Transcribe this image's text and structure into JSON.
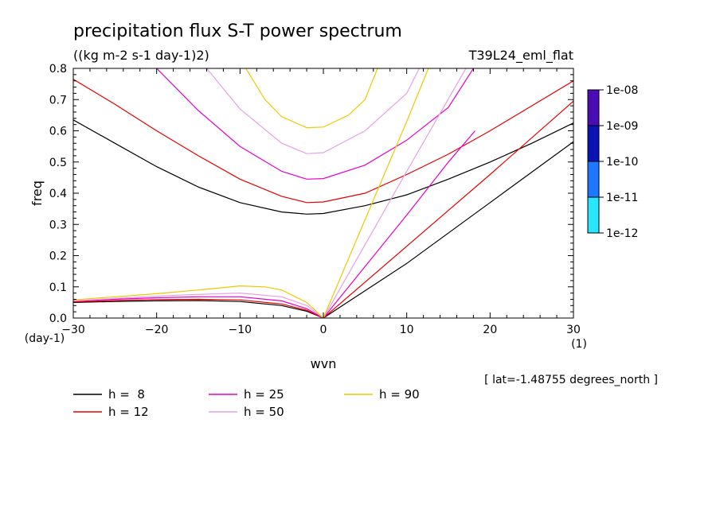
{
  "chart_data": {
    "type": "line",
    "title": "precipitation flux S-T power spectrum",
    "subtitle": "((kg m-2 s-1 day-1)2)",
    "run_label": "T39L24_eml_flat",
    "footnote": "[ lat=-1.48755 degrees_north ]",
    "xlabel": "wvn",
    "ylabel": "freq",
    "x_unit": "(1)",
    "y_unit": "(day-1)",
    "xlim": [
      -30,
      30
    ],
    "ylim": [
      0,
      0.8
    ],
    "x_ticks": [
      -30,
      -20,
      -10,
      0,
      10,
      20,
      30
    ],
    "x_tick_labels": [
      "-30",
      "-20",
      "-10",
      "0",
      "10",
      "20",
      "30"
    ],
    "y_ticks": [
      0,
      0.1,
      0.2,
      0.3,
      0.4,
      0.5,
      0.6,
      0.7,
      0.8
    ],
    "y_tick_labels": [
      "0.0",
      "0.1",
      "0.2",
      "0.3",
      "0.4",
      "0.5",
      "0.6",
      "0.7",
      "0.8"
    ],
    "colorbar": {
      "labels": [
        "1e-08",
        "1e-09",
        "1e-10",
        "1e-11",
        "1e-12"
      ],
      "colors": [
        "#4a0cb4",
        "#0a14b4",
        "#1e78ff",
        "#28e6ff"
      ]
    },
    "legend": [
      {
        "label": "h =  8",
        "color": "#000000"
      },
      {
        "label": "h = 12",
        "color": "#e60000"
      },
      {
        "label": "h = 25",
        "color": "#e600c8"
      },
      {
        "label": "h = 50",
        "color": "#e6a0e6"
      },
      {
        "label": "h = 90",
        "color": "#f0c800"
      }
    ],
    "series": [
      {
        "name": "h =  8",
        "color": "#000000",
        "inertia_gravity": [
          [
            -30,
            0.635
          ],
          [
            -25,
            0.56
          ],
          [
            -20,
            0.485
          ],
          [
            -15,
            0.42
          ],
          [
            -10,
            0.37
          ],
          [
            -5,
            0.34
          ],
          [
            -2,
            0.333
          ],
          [
            0,
            0.335
          ],
          [
            5,
            0.36
          ],
          [
            10,
            0.395
          ],
          [
            15,
            0.445
          ],
          [
            20,
            0.5
          ],
          [
            25,
            0.56
          ],
          [
            30,
            0.625
          ]
        ],
        "kelvin": [
          [
            0,
            0
          ],
          [
            10,
            0.175
          ],
          [
            20,
            0.37
          ],
          [
            30,
            0.565
          ]
        ],
        "rossby": [
          [
            -30,
            0.05
          ],
          [
            -25,
            0.053
          ],
          [
            -20,
            0.055
          ],
          [
            -15,
            0.056
          ],
          [
            -10,
            0.053
          ],
          [
            -5,
            0.04
          ],
          [
            -2,
            0.022
          ],
          [
            0,
            0
          ]
        ]
      },
      {
        "name": "h = 12",
        "color": "#e60000",
        "inertia_gravity": [
          [
            -30,
            0.765
          ],
          [
            -25,
            0.685
          ],
          [
            -20,
            0.6
          ],
          [
            -15,
            0.52
          ],
          [
            -10,
            0.445
          ],
          [
            -5,
            0.39
          ],
          [
            -2,
            0.37
          ],
          [
            0,
            0.372
          ],
          [
            5,
            0.4
          ],
          [
            10,
            0.46
          ],
          [
            15,
            0.525
          ],
          [
            20,
            0.6
          ],
          [
            25,
            0.68
          ],
          [
            30,
            0.76
          ]
        ],
        "kelvin": [
          [
            0,
            0
          ],
          [
            10,
            0.23
          ],
          [
            20,
            0.46
          ],
          [
            30,
            0.695
          ]
        ],
        "rossby": [
          [
            -30,
            0.052
          ],
          [
            -25,
            0.056
          ],
          [
            -20,
            0.059
          ],
          [
            -15,
            0.06
          ],
          [
            -10,
            0.058
          ],
          [
            -5,
            0.045
          ],
          [
            -2,
            0.025
          ],
          [
            0,
            0
          ]
        ]
      },
      {
        "name": "h = 25",
        "color": "#e600c8",
        "inertia_gravity": [
          [
            -20,
            0.8
          ],
          [
            -15,
            0.665
          ],
          [
            -10,
            0.55
          ],
          [
            -5,
            0.47
          ],
          [
            -2,
            0.445
          ],
          [
            0,
            0.447
          ],
          [
            5,
            0.49
          ],
          [
            10,
            0.57
          ],
          [
            15,
            0.675
          ],
          [
            18,
            0.8
          ]
        ],
        "kelvin": [
          [
            0,
            0
          ],
          [
            5,
            0.165
          ],
          [
            10,
            0.33
          ],
          [
            15,
            0.5
          ],
          [
            18.2,
            0.6
          ]
        ],
        "rossby": [
          [
            -30,
            0.054
          ],
          [
            -25,
            0.06
          ],
          [
            -20,
            0.065
          ],
          [
            -15,
            0.068
          ],
          [
            -10,
            0.068
          ],
          [
            -5,
            0.055
          ],
          [
            -2,
            0.03
          ],
          [
            0,
            0
          ]
        ]
      },
      {
        "name": "h = 50",
        "color": "#e6a0e6",
        "inertia_gravity": [
          [
            -14,
            0.8
          ],
          [
            -10,
            0.67
          ],
          [
            -5,
            0.56
          ],
          [
            -2,
            0.527
          ],
          [
            0,
            0.53
          ],
          [
            5,
            0.6
          ],
          [
            10,
            0.72
          ],
          [
            11.5,
            0.8
          ]
        ],
        "kelvin": [
          [
            0,
            0
          ],
          [
            5,
            0.235
          ],
          [
            10,
            0.47
          ],
          [
            17.1,
            0.8
          ]
        ],
        "rossby": [
          [
            -30,
            0.055
          ],
          [
            -25,
            0.063
          ],
          [
            -20,
            0.07
          ],
          [
            -15,
            0.076
          ],
          [
            -10,
            0.08
          ],
          [
            -5,
            0.068
          ],
          [
            -2,
            0.04
          ],
          [
            0,
            0
          ]
        ]
      },
      {
        "name": "h = 90",
        "color": "#f0c800",
        "inertia_gravity": [
          [
            -9.3,
            0.8
          ],
          [
            -7,
            0.7
          ],
          [
            -5,
            0.645
          ],
          [
            -2,
            0.61
          ],
          [
            0,
            0.612
          ],
          [
            3,
            0.65
          ],
          [
            5,
            0.7
          ],
          [
            6.5,
            0.8
          ]
        ],
        "kelvin": [
          [
            0,
            0
          ],
          [
            5,
            0.315
          ],
          [
            10,
            0.63
          ],
          [
            12.6,
            0.8
          ]
        ],
        "rossby": [
          [
            -30,
            0.058
          ],
          [
            -25,
            0.068
          ],
          [
            -20,
            0.078
          ],
          [
            -15,
            0.09
          ],
          [
            -10,
            0.103
          ],
          [
            -7,
            0.1
          ],
          [
            -5,
            0.09
          ],
          [
            -2,
            0.05
          ],
          [
            0,
            0
          ]
        ]
      }
    ],
    "grid": false,
    "legend_placement": "bottom"
  }
}
